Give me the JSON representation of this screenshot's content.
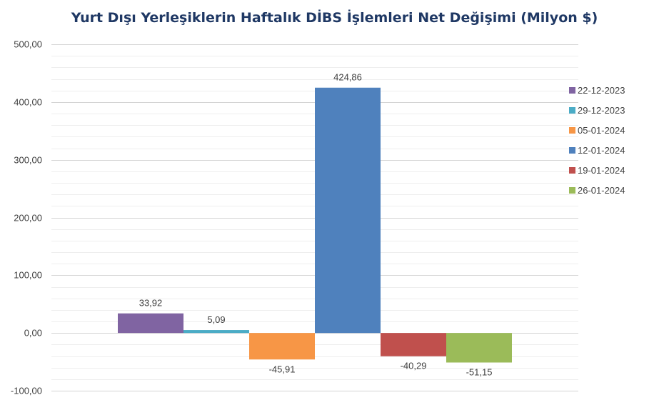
{
  "chart_data": {
    "type": "bar",
    "title": "Yurt Dışı Yerleşiklerin Haftalık DİBS İşlemleri Net Değişimi (Milyon $)",
    "categories": [
      "22-12-2023",
      "29-12-2023",
      "05-01-2024",
      "12-01-2024",
      "19-01-2024",
      "26-01-2024"
    ],
    "values": [
      33.92,
      5.09,
      -45.91,
      424.86,
      -40.29,
      -51.15
    ],
    "value_labels": [
      "33,92",
      "5,09",
      "-45,91",
      "424,86",
      "-40,29",
      "-51,15"
    ],
    "colors": [
      "#8064a2",
      "#4bacc6",
      "#f79646",
      "#4f81bd",
      "#c0504d",
      "#9bbb59"
    ],
    "ylim": [
      -100,
      500
    ],
    "y_ticks": [
      -100,
      0,
      100,
      200,
      300,
      400,
      500
    ],
    "y_tick_labels": [
      "-100,00",
      "0,00",
      "100,00",
      "200,00",
      "300,00",
      "400,00",
      "500,00"
    ],
    "minor_grid_step": 20,
    "grid": true,
    "legend_position": "right"
  }
}
